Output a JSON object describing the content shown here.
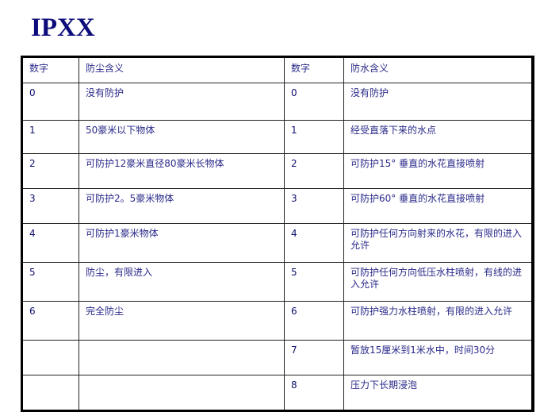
{
  "title": "IPXX",
  "headers": [
    "数字",
    "防尘含义",
    "数字",
    "防水含义"
  ],
  "rows": [
    {
      "dust_num": "0",
      "dust": "没有防护",
      "water_num": "0",
      "water": "没有防护"
    },
    {
      "dust_num": "1",
      "dust": "50豪米以下物体",
      "water_num": "1",
      "water": "经受直落下来的水点"
    },
    {
      "dust_num": "2",
      "dust": "可防护12豪米直径80豪米长物体",
      "water_num": "2",
      "water": "可防护15° 垂直的水花直接喷射"
    },
    {
      "dust_num": "3",
      "dust": "可防护2。5豪米物体",
      "water_num": "3",
      "water": "可防护60° 垂直的水花直接喷射"
    },
    {
      "dust_num": "4",
      "dust": "可防护1豪米物体",
      "water_num": "4",
      "water": "可防护任何方向射来的水花，有限的进入允许"
    },
    {
      "dust_num": "5",
      "dust": "防尘，有限进入",
      "water_num": "5",
      "water": "可防护任何方向低压水柱喷射，有线的进入允许"
    },
    {
      "dust_num": "6",
      "dust": "完全防尘",
      "water_num": "6",
      "water": "可防护强力水柱喷射，有限的进入允许"
    },
    {
      "dust_num": "",
      "dust": "",
      "water_num": "7",
      "water": "暂放15厘米到1米水中，时间30分"
    },
    {
      "dust_num": "",
      "dust": "",
      "water_num": "8",
      "water": "压力下长期浸泡"
    }
  ]
}
